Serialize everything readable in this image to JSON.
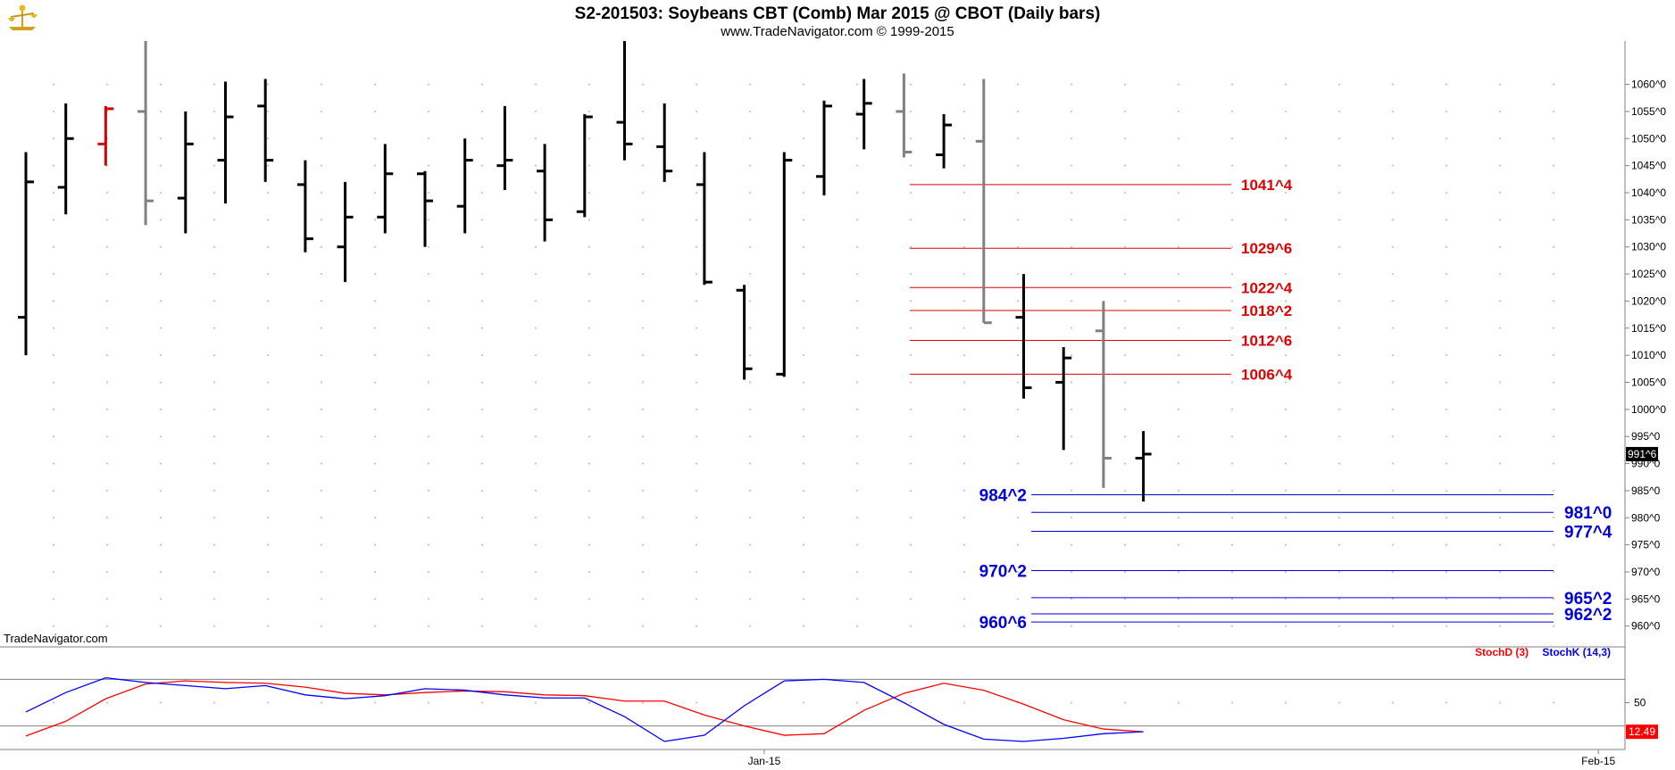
{
  "header": {
    "title": "S2-201503:  Soybeans CBT (Comb) Mar 2015 @ CBOT  (Daily bars)",
    "subtitle": "www.TradeNavigator.com © 1999-2015"
  },
  "watermark": "TradeNavigator.com",
  "chart_data": [
    {
      "type": "ohlc",
      "title": "S2-201503:  Soybeans CBT (Comb) Mar 2015 @ CBOT  (Daily bars)",
      "ylim": [
        956,
        1068
      ],
      "y_ticks": [
        "960^0",
        "965^0",
        "970^0",
        "975^0",
        "980^0",
        "985^0",
        "990^0",
        "995^0",
        "1000^0",
        "1005^0",
        "1010^0",
        "1015^0",
        "1020^0",
        "1025^0",
        "1030^0",
        "1035^0",
        "1040^0",
        "1045^0",
        "1050^0",
        "1055^0",
        "1060^0"
      ],
      "y_tick_values": [
        960,
        965,
        970,
        975,
        980,
        985,
        990,
        995,
        1000,
        1005,
        1010,
        1015,
        1020,
        1025,
        1030,
        1035,
        1040,
        1045,
        1050,
        1055,
        1060
      ],
      "x_labels": [
        {
          "label": "Jan-15",
          "bar_index": 18.5
        },
        {
          "label": "Feb-15",
          "bar_index": 39.4
        }
      ],
      "last_price_label": "991^6",
      "last_price": 991.75,
      "bars": [
        {
          "o": 1017,
          "h": 1047.5,
          "l": 1010,
          "c": 1042,
          "color": "#000000"
        },
        {
          "o": 1041,
          "h": 1056.5,
          "l": 1036,
          "c": 1050,
          "color": "#000000"
        },
        {
          "o": 1049,
          "h": 1056,
          "l": 1045,
          "c": 1055.5,
          "color": "#e00000"
        },
        {
          "o": 1055,
          "h": 1068,
          "l": 1034,
          "c": 1038.5,
          "color": "#808080"
        },
        {
          "o": 1039,
          "h": 1055,
          "l": 1032.5,
          "c": 1049,
          "color": "#000000"
        },
        {
          "o": 1046,
          "h": 1060.5,
          "l": 1038,
          "c": 1054,
          "color": "#000000"
        },
        {
          "o": 1056,
          "h": 1061,
          "l": 1042,
          "c": 1046,
          "color": "#000000"
        },
        {
          "o": 1041.5,
          "h": 1046,
          "l": 1029,
          "c": 1031.5,
          "color": "#000000"
        },
        {
          "o": 1030,
          "h": 1042,
          "l": 1023.5,
          "c": 1035.5,
          "color": "#000000"
        },
        {
          "o": 1035.5,
          "h": 1049,
          "l": 1032.5,
          "c": 1043.5,
          "color": "#000000"
        },
        {
          "o": 1043.5,
          "h": 1044,
          "l": 1030,
          "c": 1038.5,
          "color": "#000000"
        },
        {
          "o": 1037.5,
          "h": 1050,
          "l": 1032.5,
          "c": 1046,
          "color": "#000000"
        },
        {
          "o": 1045,
          "h": 1056,
          "l": 1040.5,
          "c": 1046,
          "color": "#000000"
        },
        {
          "o": 1044,
          "h": 1049,
          "l": 1031,
          "c": 1035,
          "color": "#000000"
        },
        {
          "o": 1036.5,
          "h": 1054.5,
          "l": 1035.5,
          "c": 1054,
          "color": "#000000"
        },
        {
          "o": 1053,
          "h": 1068,
          "l": 1046,
          "c": 1049,
          "color": "#000000"
        },
        {
          "o": 1048.5,
          "h": 1056.5,
          "l": 1042,
          "c": 1044,
          "color": "#000000"
        },
        {
          "o": 1041.5,
          "h": 1047.5,
          "l": 1023,
          "c": 1023.5,
          "color": "#000000"
        },
        {
          "o": 1022,
          "h": 1023,
          "l": 1005.5,
          "c": 1007.5,
          "color": "#000000"
        },
        {
          "o": 1006.5,
          "h": 1047.5,
          "l": 1006,
          "c": 1046,
          "color": "#000000"
        },
        {
          "o": 1043,
          "h": 1057,
          "l": 1039.5,
          "c": 1056,
          "color": "#000000"
        },
        {
          "o": 1054.5,
          "h": 1061,
          "l": 1048,
          "c": 1056.5,
          "color": "#000000"
        },
        {
          "o": 1055,
          "h": 1062,
          "l": 1046.5,
          "c": 1047.5,
          "color": "#808080"
        },
        {
          "o": 1047,
          "h": 1054.5,
          "l": 1044.5,
          "c": 1052.5,
          "color": "#000000"
        },
        {
          "o": 1049.5,
          "h": 1061,
          "l": 1016,
          "c": 1016,
          "color": "#808080"
        },
        {
          "o": 1017,
          "h": 1025,
          "l": 1002,
          "c": 1004,
          "color": "#000000"
        },
        {
          "o": 1005,
          "h": 1011.5,
          "l": 992.5,
          "c": 1009.5,
          "color": "#000000"
        },
        {
          "o": 1014.5,
          "h": 1020,
          "l": 985.5,
          "c": 991,
          "color": "#808080"
        },
        {
          "o": 991,
          "h": 996,
          "l": 983,
          "c": 991.75,
          "color": "#000000"
        }
      ],
      "resistance_levels": [
        {
          "label": "1041^4",
          "value": 1041.5
        },
        {
          "label": "1029^6",
          "value": 1029.75
        },
        {
          "label": "1022^4",
          "value": 1022.5
        },
        {
          "label": "1018^2",
          "value": 1018.25
        },
        {
          "label": "1012^6",
          "value": 1012.75
        },
        {
          "label": "1006^4",
          "value": 1006.5
        }
      ],
      "support_levels": [
        {
          "label": "984^2",
          "value": 984.25,
          "label_side": "left"
        },
        {
          "label": "981^0",
          "value": 981.0,
          "label_side": "right"
        },
        {
          "label": "977^4",
          "value": 977.5,
          "label_side": "right"
        },
        {
          "label": "970^2",
          "value": 970.25,
          "label_side": "left"
        },
        {
          "label": "965^2",
          "value": 965.25,
          "label_side": "right"
        },
        {
          "label": "962^2",
          "value": 962.25,
          "label_side": "right"
        },
        {
          "label": "960^6",
          "value": 960.75,
          "label_side": "left"
        }
      ],
      "colors": {
        "resistance": "#e00000",
        "support": "#0000dd",
        "grid_dot": "#b8b8b8"
      }
    },
    {
      "type": "line",
      "title": "",
      "ylim": [
        0,
        100
      ],
      "y_ticks": [
        "50"
      ],
      "y_tick_values": [
        50
      ],
      "reference_lines": [
        80,
        20
      ],
      "last_value_label": "12.49",
      "x": [
        0,
        1,
        2,
        3,
        4,
        5,
        6,
        7,
        8,
        9,
        10,
        11,
        12,
        13,
        14,
        15,
        16,
        17,
        18,
        19,
        20,
        21,
        22,
        23,
        24,
        25,
        26,
        27,
        28
      ],
      "series": [
        {
          "name": "StochD (3)",
          "color": "#ff0000",
          "values": [
            7,
            26,
            55,
            74,
            78,
            76,
            75,
            70,
            62,
            60,
            63,
            65,
            64,
            60,
            59,
            52,
            52,
            34,
            20,
            8,
            10,
            40,
            62,
            75,
            66,
            48,
            28,
            16,
            12.49
          ]
        },
        {
          "name": "StochK (14,3)",
          "color": "#0000ff",
          "values": [
            38,
            63,
            82,
            76,
            72,
            68,
            72,
            60,
            55,
            59,
            68,
            66,
            60,
            56,
            56,
            32,
            0,
            8,
            46,
            78,
            80,
            76,
            50,
            22,
            3,
            0,
            4,
            10,
            12.49
          ]
        }
      ]
    }
  ]
}
